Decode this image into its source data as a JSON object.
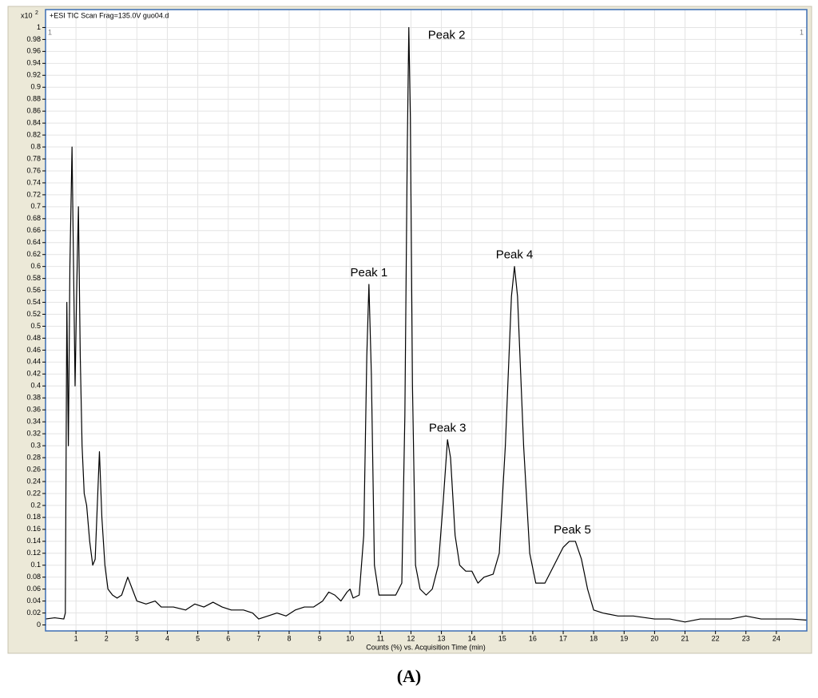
{
  "chart_data": {
    "type": "line",
    "title": "+ESI TIC Scan Frag=135.0V guo04.d",
    "y_scale_label": "x10",
    "y_scale_exponent": "2",
    "corner_left": "1",
    "corner_right": "1",
    "x_label": "Counts (%) vs. Acquisition Time (min)",
    "caption": "(A)",
    "xlim": [
      0,
      25
    ],
    "ylim": [
      -0.01,
      1.03
    ],
    "xticks": [
      1,
      2,
      3,
      4,
      5,
      6,
      7,
      8,
      9,
      10,
      11,
      12,
      13,
      14,
      15,
      16,
      17,
      18,
      19,
      20,
      21,
      22,
      23,
      24
    ],
    "yticks": [
      0,
      0.02,
      0.04,
      0.06,
      0.08,
      0.1,
      0.12,
      0.14,
      0.16,
      0.18,
      0.2,
      0.22,
      0.24,
      0.26,
      0.28,
      0.3,
      0.32,
      0.34,
      0.36,
      0.38,
      0.4,
      0.42,
      0.44,
      0.46,
      0.48,
      0.5,
      0.52,
      0.54,
      0.56,
      0.58,
      0.6,
      0.62,
      0.64,
      0.66,
      0.68,
      0.7,
      0.72,
      0.74,
      0.76,
      0.78,
      0.8,
      0.82,
      0.84,
      0.86,
      0.88,
      0.9,
      0.92,
      0.94,
      0.96,
      0.98,
      1
    ],
    "grid": true,
    "x": [
      0.0,
      0.3,
      0.6,
      0.65,
      0.7,
      0.75,
      0.8,
      0.87,
      0.92,
      0.97,
      1.02,
      1.08,
      1.14,
      1.2,
      1.27,
      1.35,
      1.45,
      1.55,
      1.63,
      1.7,
      1.77,
      1.85,
      1.95,
      2.05,
      2.2,
      2.35,
      2.5,
      2.7,
      2.85,
      3.0,
      3.3,
      3.6,
      3.8,
      4.2,
      4.6,
      4.9,
      5.2,
      5.5,
      5.8,
      6.1,
      6.5,
      6.8,
      7.0,
      7.3,
      7.6,
      7.9,
      8.2,
      8.5,
      8.8,
      9.1,
      9.3,
      9.5,
      9.7,
      9.9,
      10.0,
      10.1,
      10.3,
      10.45,
      10.55,
      10.62,
      10.7,
      10.8,
      10.95,
      11.2,
      11.5,
      11.7,
      11.8,
      11.88,
      11.93,
      11.98,
      12.05,
      12.15,
      12.3,
      12.5,
      12.7,
      12.9,
      13.05,
      13.2,
      13.3,
      13.45,
      13.6,
      13.8,
      14.0,
      14.2,
      14.4,
      14.7,
      14.9,
      15.1,
      15.3,
      15.4,
      15.5,
      15.7,
      15.9,
      16.1,
      16.4,
      16.7,
      17.0,
      17.2,
      17.4,
      17.6,
      17.8,
      18.0,
      18.3,
      18.8,
      19.3,
      20.0,
      20.5,
      21.0,
      21.5,
      22.0,
      22.5,
      23.0,
      23.5,
      24.0,
      24.5,
      25.0
    ],
    "series": [
      {
        "color": "#000000",
        "values": [
          0.01,
          0.012,
          0.01,
          0.02,
          0.54,
          0.3,
          0.6,
          0.8,
          0.6,
          0.4,
          0.55,
          0.7,
          0.45,
          0.3,
          0.22,
          0.2,
          0.14,
          0.1,
          0.11,
          0.2,
          0.29,
          0.18,
          0.1,
          0.06,
          0.05,
          0.045,
          0.05,
          0.08,
          0.06,
          0.04,
          0.035,
          0.04,
          0.03,
          0.03,
          0.025,
          0.035,
          0.03,
          0.038,
          0.03,
          0.025,
          0.025,
          0.02,
          0.01,
          0.015,
          0.02,
          0.015,
          0.025,
          0.03,
          0.03,
          0.04,
          0.055,
          0.05,
          0.04,
          0.055,
          0.06,
          0.045,
          0.05,
          0.15,
          0.45,
          0.57,
          0.42,
          0.1,
          0.05,
          0.05,
          0.05,
          0.07,
          0.35,
          0.8,
          1.0,
          0.85,
          0.4,
          0.1,
          0.06,
          0.05,
          0.06,
          0.1,
          0.2,
          0.31,
          0.28,
          0.15,
          0.1,
          0.09,
          0.09,
          0.07,
          0.08,
          0.085,
          0.12,
          0.3,
          0.55,
          0.6,
          0.55,
          0.3,
          0.12,
          0.07,
          0.07,
          0.1,
          0.13,
          0.14,
          0.14,
          0.11,
          0.06,
          0.025,
          0.02,
          0.015,
          0.015,
          0.01,
          0.01,
          0.005,
          0.01,
          0.01,
          0.01,
          0.015,
          0.01,
          0.01,
          0.01,
          0.008
        ]
      }
    ],
    "annotations": [
      {
        "text": "Peak 1",
        "x": 10.62,
        "y": 0.57
      },
      {
        "text": "Peak 2",
        "x": 11.93,
        "y": 1.0
      },
      {
        "text": "Peak 3",
        "x": 13.2,
        "y": 0.31
      },
      {
        "text": "Peak 4",
        "x": 15.4,
        "y": 0.6
      },
      {
        "text": "Peak 5",
        "x": 17.3,
        "y": 0.14
      }
    ]
  }
}
